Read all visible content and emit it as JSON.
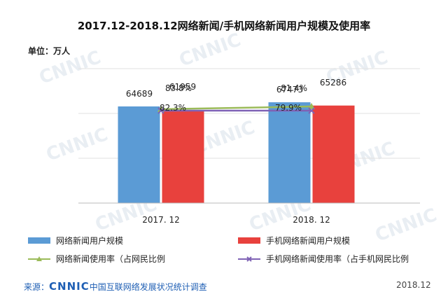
{
  "title": "2017.12-2018.12网络新闻/手机网络新闻用户规模及使用率",
  "unit_label": "单位：万人",
  "watermark": "CNNIC",
  "source": {
    "prefix": "来源：",
    "org_logo": "CNNIC",
    "org_name": "中国互联网络发展状况统计调查"
  },
  "date_label": "2018.12",
  "chart_data": {
    "type": "bar",
    "title": "2017.12-2018.12网络新闻/手机网络新闻用户规模及使用率",
    "categories": [
      "2017. 12",
      "2018. 12"
    ],
    "ylim": [
      0,
      90000
    ],
    "grid": true,
    "legend_position": "bottom",
    "series": [
      {
        "name": "网络新闻用户规模",
        "kind": "bar",
        "color": "#5b9bd5",
        "values": [
          64689,
          67473
        ],
        "labels": [
          "64689",
          "67473"
        ]
      },
      {
        "name": "手机网络新闻用户规模",
        "kind": "bar",
        "color": "#e8413d",
        "values": [
          61959,
          65286
        ],
        "labels": [
          "61959",
          "65286"
        ]
      }
    ],
    "rate_series": [
      {
        "name": "网络新闻使用率（占网民比例",
        "kind": "line",
        "color": "#9bbb59",
        "values": [
          83.8,
          81.4
        ],
        "labels": [
          "83.8%",
          "81.4%"
        ]
      },
      {
        "name": "手机网络新闻使用率（占手机网民比例",
        "kind": "line",
        "color": "#7f62b5",
        "values": [
          82.3,
          79.9
        ],
        "labels": [
          "82.3%",
          "79.9%"
        ]
      }
    ]
  }
}
